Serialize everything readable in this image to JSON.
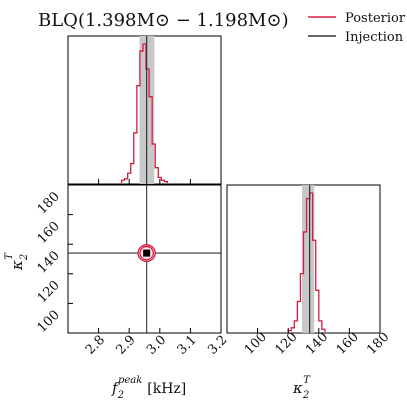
{
  "chart_data": {
    "type": "corner",
    "title": "BLQ(1.398M⊙ − 1.198M⊙)",
    "legend": {
      "placement": "top-right",
      "entries": [
        {
          "label": "Posterior",
          "color": "#d81b40"
        },
        {
          "label": "Injection",
          "color": "#333333"
        }
      ]
    },
    "parameters": [
      {
        "name": "f2_peak",
        "label_main": "f",
        "label_sub": "2",
        "label_sup": "peak",
        "unit": "[kHz]",
        "range": [
          2.7,
          3.2
        ],
        "ticks": [
          2.8,
          2.9,
          3.0,
          3.1,
          3.2
        ],
        "tick_labels": [
          "2.8",
          "2.9",
          "3.0",
          "3.1",
          "3.2"
        ]
      },
      {
        "name": "kappa2_T",
        "label_main": "κ",
        "label_sub": "2",
        "label_sup": "T",
        "unit": "",
        "range": [
          80,
          180
        ],
        "ticks": [
          100,
          120,
          140,
          160,
          180
        ],
        "tick_labels": [
          "100",
          "120",
          "140",
          "160",
          "180"
        ]
      }
    ],
    "injection": {
      "f2_peak": 2.957,
      "kappa2_T": 134
    },
    "marginal_f2_peak": {
      "bin_edges": [
        2.875,
        2.885,
        2.895,
        2.905,
        2.915,
        2.925,
        2.935,
        2.945,
        2.955,
        2.965,
        2.975,
        2.985,
        2.995,
        3.005,
        3.015,
        3.025
      ],
      "density": [
        0.02,
        0.03,
        0.07,
        0.14,
        0.36,
        0.7,
        0.95,
        1.0,
        0.82,
        0.62,
        0.28,
        0.11,
        0.04,
        0.02,
        0.01
      ],
      "credible_interval": [
        2.934,
        2.982
      ]
    },
    "marginal_kappa2_T": {
      "bin_edges": [
        120,
        122,
        124,
        126,
        128,
        130,
        132,
        134,
        136,
        138,
        140,
        142,
        144
      ],
      "density": [
        0.01,
        0.03,
        0.08,
        0.22,
        0.42,
        0.72,
        0.96,
        1.0,
        0.66,
        0.3,
        0.08,
        0.02
      ],
      "credible_interval": [
        129,
        137
      ]
    },
    "joint": {
      "center": {
        "f2_peak": 2.957,
        "kappa2_T": 134
      },
      "contours": [
        {
          "level": "inner",
          "half_width_f2_peak": 0.022,
          "half_width_kappa2_T": 4.5
        },
        {
          "level": "outer",
          "half_width_f2_peak": 0.028,
          "half_width_kappa2_T": 5.6
        }
      ]
    }
  }
}
